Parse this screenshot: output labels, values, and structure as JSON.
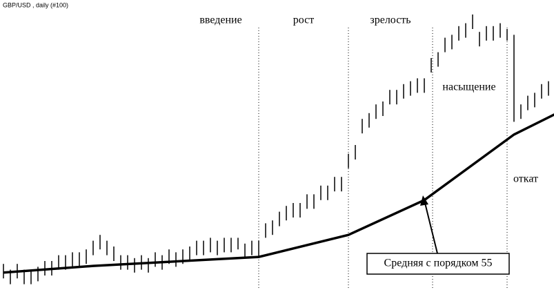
{
  "chart_data": {
    "type": "range_bar",
    "title": "GBP/USD , daily  (#100)",
    "xlim": [
      -0.5,
      79.8
    ],
    "ylim": [
      0,
      100
    ],
    "series": [
      {
        "color": "#000000",
        "x": [
          0,
          1,
          2,
          3,
          4,
          5,
          6,
          7,
          8,
          9,
          10,
          11,
          12,
          13,
          14,
          15,
          16,
          17,
          18,
          19,
          20,
          21,
          22,
          23,
          24,
          25,
          26,
          27,
          28,
          29,
          30,
          31,
          32,
          33,
          34,
          35,
          36,
          37,
          38,
          39,
          40,
          41,
          42,
          43,
          44,
          45,
          46,
          47,
          48,
          49,
          50,
          51,
          52,
          53,
          54,
          55,
          56,
          57,
          58,
          59,
          60,
          61,
          62,
          63,
          64,
          65,
          66,
          67,
          68,
          69,
          70,
          71,
          72,
          73,
          74,
          75,
          76,
          77,
          78,
          79
        ],
        "high": [
          9,
          7,
          9,
          7,
          7,
          8,
          10,
          10,
          12,
          12,
          13,
          13,
          14,
          17,
          19,
          17,
          15,
          12,
          12,
          11,
          12,
          11,
          13,
          12,
          14,
          13,
          14,
          15,
          17,
          17,
          18,
          17,
          18,
          18,
          18,
          16,
          17,
          17,
          23,
          24,
          27,
          29,
          30,
          30,
          33,
          33,
          36,
          36,
          39,
          39,
          47,
          50,
          59,
          61,
          64,
          65,
          69,
          69,
          71,
          72,
          73,
          73,
          80,
          82,
          87,
          88,
          91,
          92,
          95,
          89,
          91,
          91,
          92,
          90,
          88,
          64,
          67,
          68,
          71,
          72
        ],
        "low": [
          4,
          2,
          4,
          2,
          2,
          3,
          5,
          5,
          7,
          7,
          8,
          8,
          9,
          12,
          14,
          12,
          10,
          7,
          7,
          6,
          7,
          6,
          8,
          7,
          9,
          8,
          9,
          10,
          12,
          12,
          13,
          12,
          13,
          13,
          14,
          11,
          12,
          11,
          18,
          19,
          22,
          24,
          25,
          25,
          28,
          28,
          31,
          31,
          34,
          34,
          42,
          45,
          54,
          56,
          59,
          60,
          64,
          64,
          66,
          67,
          68,
          68,
          75,
          77,
          82,
          83,
          86,
          87,
          90,
          84,
          86,
          86,
          87,
          86,
          58,
          59,
          62,
          63,
          66,
          67
        ]
      },
      {
        "color": "#000000",
        "x": [
          0,
          13,
          37,
          50,
          61,
          74,
          80
        ],
        "values": [
          6,
          8.3,
          11.4,
          19,
          31,
          53.6,
          60.7
        ]
      }
    ],
    "vlines": [
      37,
      50,
      62.2,
      73
    ],
    "annotations": [
      "введение",
      "рост",
      "зрелость",
      "насыщение",
      "откат",
      "Средняя с порядком 55"
    ]
  }
}
